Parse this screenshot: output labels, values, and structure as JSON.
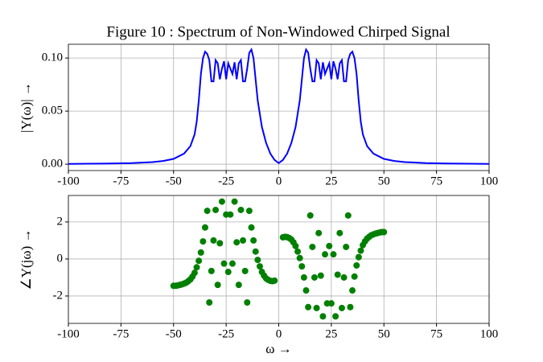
{
  "chart_data": [
    {
      "type": "line",
      "title": "Figure 10 : Spectrum of Non-Windowed Chirped Signal",
      "y_label": "|Y(ω)| →",
      "xlim": [
        -100,
        100
      ],
      "xticks": [
        -100,
        -75,
        -50,
        -25,
        0,
        25,
        50,
        75,
        100
      ],
      "ylim": [
        -0.006,
        0.113
      ],
      "yticks": [
        {
          "value": 0,
          "label": "0.00"
        },
        {
          "value": 0.05,
          "label": "0.05"
        },
        {
          "value": 0.1,
          "label": "0.10"
        }
      ],
      "grid": true,
      "x": [
        -100,
        -90,
        -80,
        -70,
        -60,
        -55,
        -50,
        -45,
        -42,
        -40,
        -39,
        -38,
        -37,
        -36,
        -35,
        -34,
        -33,
        -32,
        -31,
        -30,
        -29,
        -28,
        -27,
        -26,
        -25,
        -24,
        -23,
        -22,
        -21,
        -20,
        -19,
        -18,
        -17,
        -16,
        -15,
        -14,
        -13,
        -12,
        -11,
        -10,
        -8,
        -6,
        -4,
        -2,
        0,
        2,
        4,
        6,
        8,
        10,
        11,
        12,
        13,
        14,
        15,
        16,
        17,
        18,
        19,
        20,
        21,
        22,
        23,
        24,
        25,
        26,
        27,
        28,
        29,
        30,
        31,
        32,
        33,
        34,
        35,
        36,
        37,
        38,
        39,
        40,
        42,
        45,
        50,
        55,
        60,
        70,
        80,
        90,
        100
      ],
      "series": [
        {
          "color": "#0000ff",
          "values": [
            0.0003,
            0.0004,
            0.0006,
            0.001,
            0.002,
            0.003,
            0.005,
            0.01,
            0.017,
            0.028,
            0.04,
            0.06,
            0.085,
            0.1,
            0.106,
            0.104,
            0.098,
            0.078,
            0.078,
            0.098,
            0.095,
            0.08,
            0.09,
            0.097,
            0.08,
            0.095,
            0.09,
            0.085,
            0.096,
            0.08,
            0.095,
            0.098,
            0.078,
            0.078,
            0.09,
            0.105,
            0.108,
            0.1,
            0.08,
            0.06,
            0.035,
            0.02,
            0.01,
            0.004,
            0.001,
            0.004,
            0.01,
            0.02,
            0.035,
            0.06,
            0.08,
            0.1,
            0.108,
            0.105,
            0.09,
            0.078,
            0.078,
            0.098,
            0.095,
            0.08,
            0.096,
            0.085,
            0.09,
            0.095,
            0.08,
            0.097,
            0.09,
            0.08,
            0.095,
            0.098,
            0.078,
            0.078,
            0.098,
            0.104,
            0.106,
            0.1,
            0.085,
            0.06,
            0.04,
            0.028,
            0.017,
            0.01,
            0.005,
            0.003,
            0.002,
            0.001,
            0.0006,
            0.0004,
            0.0003
          ]
        }
      ]
    },
    {
      "type": "scatter",
      "x_label": "ω →",
      "y_label": "∠Y(jω) →",
      "xlim": [
        -100,
        100
      ],
      "xticks": [
        -100,
        -75,
        -50,
        -25,
        0,
        25,
        50,
        75,
        100
      ],
      "ylim": [
        -3.48,
        3.43
      ],
      "yticks": [
        -2,
        0,
        2
      ],
      "grid": true,
      "x": [
        -50,
        -49,
        -48,
        -47,
        -46,
        -45,
        -44,
        -43,
        -42,
        -41,
        -40,
        -39,
        -38,
        -37,
        -36,
        -35,
        -34,
        -33,
        -32,
        -31,
        -30,
        -29,
        -28,
        -27,
        -26,
        -25,
        -24,
        -23,
        -22,
        -21,
        -20,
        -19,
        -18,
        -17,
        -16,
        -15,
        -14,
        -13,
        -12,
        -11,
        -10,
        -9,
        -8,
        -7,
        -6,
        -5,
        -4,
        -3,
        -2,
        2,
        3,
        4,
        5,
        6,
        7,
        8,
        9,
        10,
        11,
        12,
        13,
        14,
        15,
        16,
        17,
        18,
        19,
        20,
        21,
        22,
        23,
        24,
        25,
        26,
        27,
        28,
        29,
        30,
        31,
        32,
        33,
        34,
        35,
        36,
        37,
        38,
        39,
        40,
        41,
        42,
        43,
        44,
        45,
        46,
        47,
        48,
        49,
        50
      ],
      "series": [
        {
          "color": "#008000",
          "values": [
            -1.45,
            -1.45,
            -1.43,
            -1.4,
            -1.37,
            -1.33,
            -1.28,
            -1.2,
            -1.1,
            -0.95,
            -0.75,
            -0.45,
            -0.1,
            0.35,
            0.95,
            1.7,
            2.6,
            -2.35,
            -0.65,
            1.0,
            2.65,
            -1.4,
            0.85,
            3.1,
            -0.25,
            2.4,
            -0.7,
            2.4,
            -0.25,
            3.1,
            0.9,
            -1.4,
            2.65,
            1.0,
            -0.65,
            -2.35,
            2.6,
            1.7,
            1.0,
            0.4,
            -0.05,
            -0.4,
            -0.7,
            -0.9,
            -1.05,
            -1.13,
            -1.18,
            -1.2,
            -1.17,
            1.17,
            1.2,
            1.18,
            1.13,
            1.05,
            0.9,
            0.7,
            0.4,
            0.05,
            -0.4,
            -1.0,
            -1.7,
            -2.6,
            2.35,
            0.65,
            -1.0,
            -2.65,
            1.4,
            -0.9,
            -3.1,
            0.25,
            -2.4,
            0.7,
            -2.4,
            0.25,
            -3.1,
            -0.85,
            1.4,
            -2.65,
            -1.0,
            0.65,
            2.35,
            -2.6,
            -1.7,
            -0.95,
            -0.35,
            0.1,
            0.45,
            0.75,
            0.95,
            1.1,
            1.2,
            1.28,
            1.33,
            1.37,
            1.4,
            1.43,
            1.45,
            1.45
          ]
        }
      ]
    }
  ]
}
